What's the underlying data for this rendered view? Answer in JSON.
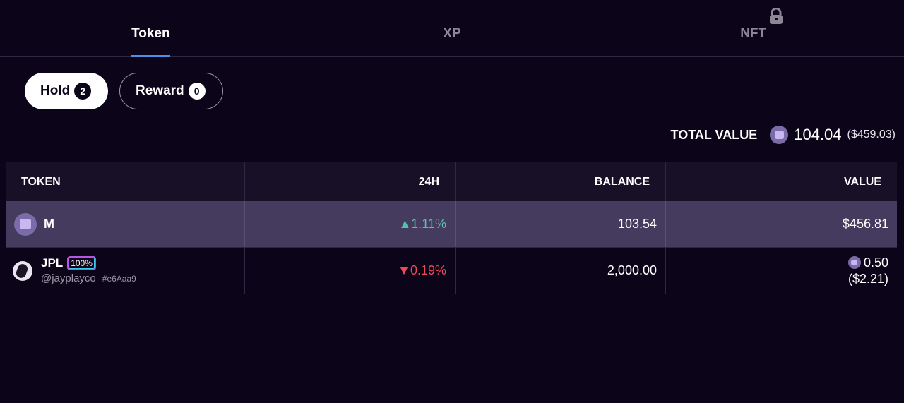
{
  "tabs": [
    {
      "label": "Token",
      "active": true
    },
    {
      "label": "XP",
      "active": false
    },
    {
      "label": "NFT",
      "active": false,
      "icon": "lock-icon"
    }
  ],
  "filters": [
    {
      "label": "Hold",
      "count": "2",
      "active": true
    },
    {
      "label": "Reward",
      "count": "0",
      "active": false
    }
  ],
  "total": {
    "label": "TOTAL VALUE",
    "amount": "104.04",
    "usd": "($459.03)",
    "icon": "m-coin-icon"
  },
  "table": {
    "headers": {
      "token": "TOKEN",
      "change": "24H",
      "balance": "BALANCE",
      "value": "VALUE"
    },
    "rows": [
      {
        "token": "M",
        "change": "▲1.11%",
        "balance": "103.54",
        "value": "$456.81"
      },
      {
        "token": "JPL",
        "badge": "100%",
        "handle": "@jayplayco",
        "hash": "#e6Aaa9",
        "change": "▼0.19%",
        "balance": "2,000.00",
        "value_amount": "0.50",
        "value_usd": "($2.21)"
      }
    ]
  },
  "colors": {
    "background": "#0c0418",
    "accent": "#4a8fe8",
    "up": "#4fc4a8",
    "down": "#e84a5a",
    "highlight_row": "#453b5e"
  }
}
